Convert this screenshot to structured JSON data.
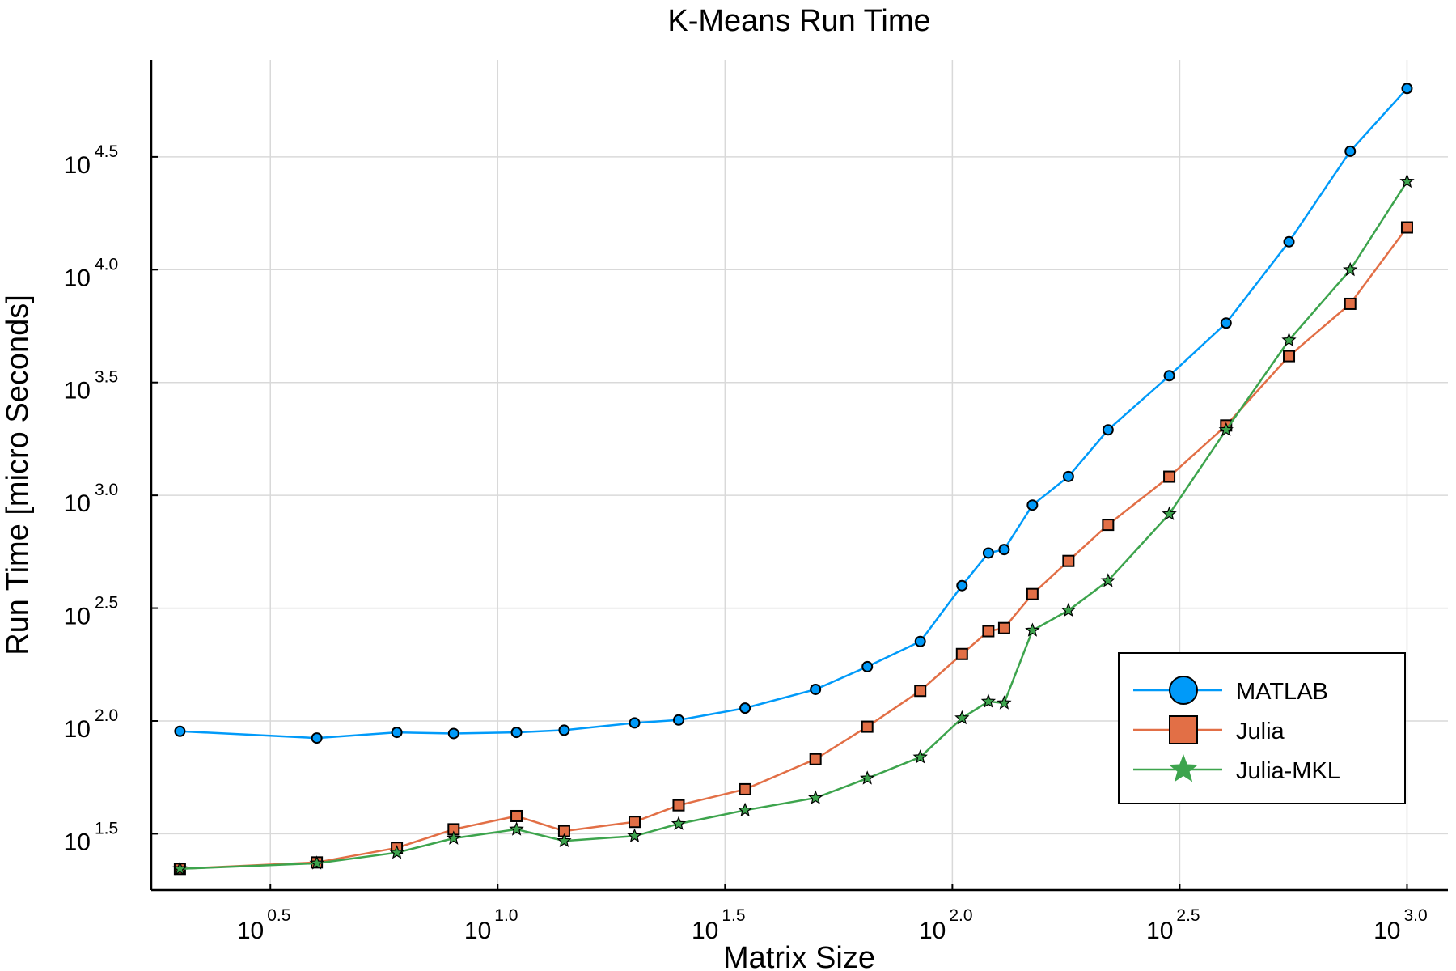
{
  "chart_data": {
    "type": "line",
    "title": "K-Means Run Time",
    "xlabel": "Matrix Size",
    "ylabel": "Run Time  [micro Seconds]",
    "x_scale": "log10",
    "y_scale": "log10",
    "xlim": [
      1.73,
      1230
    ],
    "ylim": [
      17.8,
      85100
    ],
    "grid": true,
    "legend_position": "right",
    "x_ticks": [
      {
        "base": "10",
        "exp": "0.5"
      },
      {
        "base": "10",
        "exp": "1.0"
      },
      {
        "base": "10",
        "exp": "1.5"
      },
      {
        "base": "10",
        "exp": "2.0"
      },
      {
        "base": "10",
        "exp": "2.5"
      },
      {
        "base": "10",
        "exp": "3.0"
      }
    ],
    "y_ticks": [
      {
        "base": "10",
        "exp": "1.5"
      },
      {
        "base": "10",
        "exp": "2.0"
      },
      {
        "base": "10",
        "exp": "2.5"
      },
      {
        "base": "10",
        "exp": "3.0"
      },
      {
        "base": "10",
        "exp": "3.5"
      },
      {
        "base": "10",
        "exp": "4.0"
      },
      {
        "base": "10",
        "exp": "4.5"
      }
    ],
    "x": [
      2,
      4,
      6,
      8,
      11,
      14,
      20,
      25,
      35,
      50,
      65,
      85,
      105,
      120,
      130,
      150,
      180,
      220,
      300,
      400,
      550,
      750,
      1000
    ],
    "series": [
      {
        "name": "MATLAB",
        "color": "#009af9",
        "marker": "circle",
        "values": [
          90,
          84,
          89,
          88,
          89,
          91,
          98,
          101,
          114,
          138,
          174,
          225,
          398,
          555,
          575,
          905,
          1212,
          1950,
          3390,
          5800,
          13300,
          33500,
          63600
        ]
      },
      {
        "name": "Julia",
        "color": "#e26f46",
        "marker": "square",
        "values": [
          22.1,
          23.6,
          27.4,
          33.1,
          37.9,
          32.5,
          35.7,
          42.3,
          49.8,
          67.7,
          94.3,
          136,
          198,
          250,
          258,
          365,
          512,
          740,
          1210,
          2040,
          4140,
          7060,
          15400
        ]
      },
      {
        "name": "Julia-MKL",
        "color": "#3da44d",
        "marker": "star",
        "values": [
          22.1,
          23.4,
          26.1,
          30.2,
          33.1,
          29.4,
          30.9,
          35.0,
          40.2,
          45.6,
          55.7,
          69.1,
          103,
          122,
          120,
          252,
          309,
          418,
          827,
          1950,
          4870,
          9980,
          24600
        ]
      }
    ]
  }
}
